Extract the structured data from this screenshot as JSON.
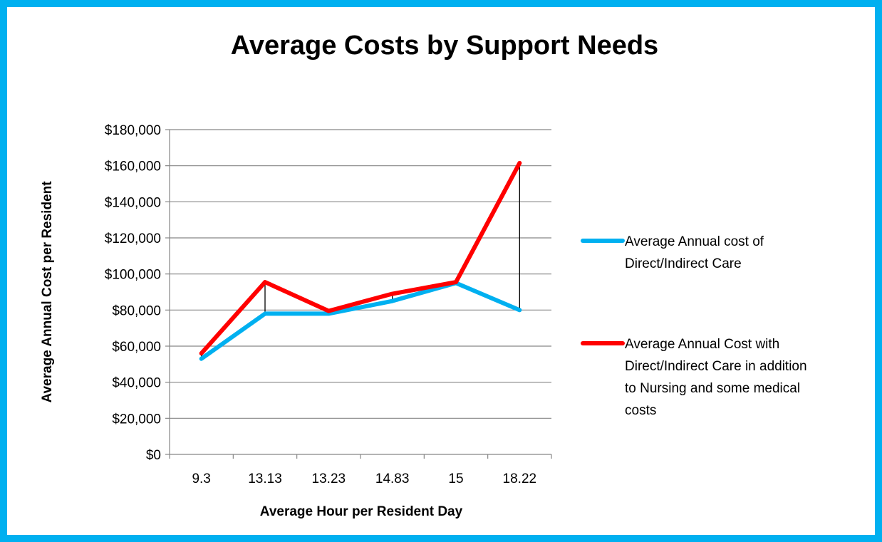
{
  "chart_data": {
    "type": "line",
    "title": "Average Costs by Support Needs",
    "xlabel": "Average Hour per Resident Day",
    "ylabel": "Average Annual Cost per Resident",
    "categories": [
      "9.3",
      "13.13",
      "13.23",
      "14.83",
      "15",
      "18.22"
    ],
    "ylim": [
      0,
      180000
    ],
    "y_ticks": [
      0,
      20000,
      40000,
      60000,
      80000,
      100000,
      120000,
      140000,
      160000,
      180000
    ],
    "y_tick_labels": [
      "$0",
      "$20,000",
      "$40,000",
      "$60,000",
      "$80,000",
      "$100,000",
      "$120,000",
      "$140,000",
      "$160,000",
      "$180,000"
    ],
    "grid": true,
    "legend_position": "right",
    "high_low_lines": true,
    "series": [
      {
        "name": "Average Annual cost of Direct/Indirect Care",
        "legend_lines": [
          "Average Annual cost of",
          "Direct/Indirect Care"
        ],
        "color": "#00B0F0",
        "values": [
          53000,
          78000,
          78000,
          85000,
          95000,
          80000
        ]
      },
      {
        "name": "Average Annual Cost with Direct/Indirect Care in addition to Nursing and some medical costs",
        "legend_lines": [
          "Average Annual Cost with",
          "Direct/Indirect Care in addition",
          "to Nursing and some medical",
          "costs"
        ],
        "color": "#FF0000",
        "values": [
          56000,
          95500,
          79500,
          89000,
          95500,
          161500
        ]
      }
    ]
  }
}
